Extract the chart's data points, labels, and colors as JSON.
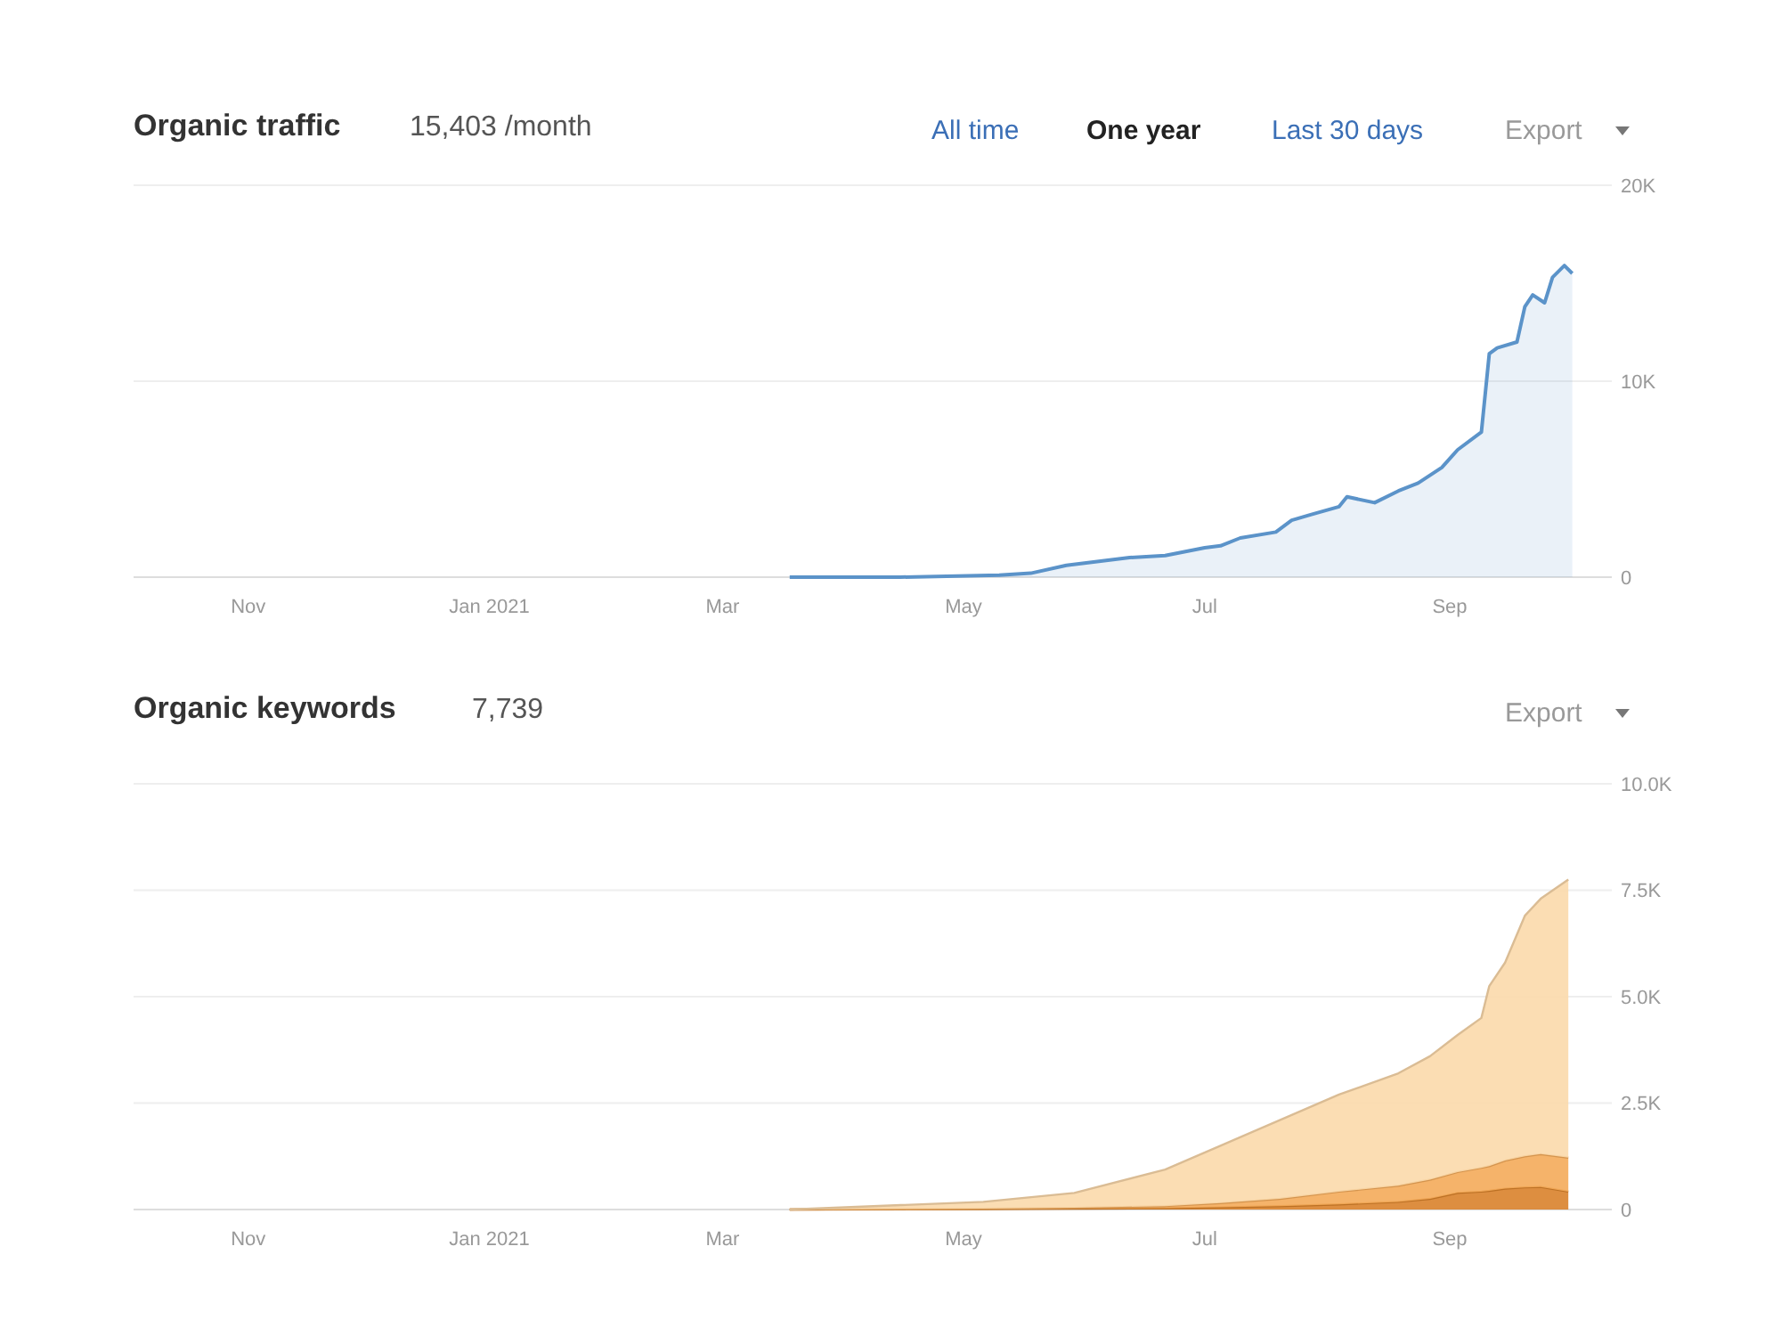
{
  "chart_data": [
    {
      "type": "area",
      "title": "Organic traffic",
      "subtitle": "15,403 /month",
      "annotations": [
        "All time",
        "One year",
        "Last 30 days",
        "Export"
      ],
      "x": [
        "2021-03-18",
        "2021-04-15",
        "2021-05-10",
        "2021-05-18",
        "2021-05-27",
        "2021-06-12",
        "2021-06-21",
        "2021-07-01",
        "2021-07-05",
        "2021-07-10",
        "2021-07-19",
        "2021-07-23",
        "2021-07-28",
        "2021-08-04",
        "2021-08-06",
        "2021-08-13",
        "2021-08-19",
        "2021-08-24",
        "2021-08-30",
        "2021-09-03",
        "2021-09-09",
        "2021-09-11",
        "2021-09-13",
        "2021-09-18",
        "2021-09-20",
        "2021-09-22",
        "2021-09-25",
        "2021-09-27",
        "2021-09-30",
        "2021-10-02"
      ],
      "series": [
        {
          "color": "#5b93c9",
          "values": [
            0,
            0,
            100,
            200,
            600,
            1000,
            1100,
            1500,
            1600,
            2000,
            2300,
            2900,
            3200,
            3600,
            4100,
            3800,
            4400,
            4800,
            5600,
            6500,
            7400,
            11400,
            11700,
            12000,
            13800,
            14400,
            14000,
            15300,
            15900,
            15500
          ]
        }
      ],
      "xlim": [
        "2020-10-03",
        "2021-10-12"
      ],
      "xticks": [
        {
          "value": "2020-11-01",
          "label": "Nov"
        },
        {
          "value": "2021-01-01",
          "label": "Jan 2021"
        },
        {
          "value": "2021-03-01",
          "label": "Mar"
        },
        {
          "value": "2021-05-01",
          "label": "May"
        },
        {
          "value": "2021-07-01",
          "label": "Jul"
        },
        {
          "value": "2021-09-01",
          "label": "Sep"
        }
      ],
      "ylim": [
        0,
        20000
      ],
      "yticks": [
        0,
        {
          "value": 10000,
          "label": "10K"
        },
        {
          "value": 20000,
          "label": "20K"
        }
      ],
      "grid": "y"
    },
    {
      "type": "area",
      "title": "Organic keywords",
      "subtitle": "7,739",
      "annotations": [
        "Export"
      ],
      "stacked": true,
      "x": [
        "2021-03-18",
        "2021-05-06",
        "2021-05-29",
        "2021-06-21",
        "2021-07-05",
        "2021-07-20",
        "2021-08-04",
        "2021-08-19",
        "2021-08-27",
        "2021-09-03",
        "2021-09-09",
        "2021-09-11",
        "2021-09-15",
        "2021-09-20",
        "2021-09-24",
        "2021-10-01"
      ],
      "series": [
        {
          "color": "#d9822b",
          "values": [
            0,
            10,
            20,
            30,
            50,
            80,
            120,
            180,
            250,
            390,
            420,
            440,
            490,
            520,
            530,
            420
          ]
        },
        {
          "color": "#f4ab5a",
          "values": [
            0,
            10,
            20,
            50,
            100,
            170,
            300,
            380,
            450,
            490,
            560,
            580,
            660,
            730,
            770,
            800
          ]
        },
        {
          "color": "#fbd9ab",
          "values": [
            0,
            160,
            350,
            860,
            1350,
            1850,
            2280,
            2640,
            2900,
            3220,
            3520,
            4230,
            4650,
            5650,
            6000,
            6530
          ]
        }
      ],
      "xlim": [
        "2020-10-03",
        "2021-10-12"
      ],
      "xticks": [
        {
          "value": "2020-11-01",
          "label": "Nov"
        },
        {
          "value": "2021-01-01",
          "label": "Jan 2021"
        },
        {
          "value": "2021-03-01",
          "label": "Mar"
        },
        {
          "value": "2021-05-01",
          "label": "May"
        },
        {
          "value": "2021-07-01",
          "label": "Jul"
        },
        {
          "value": "2021-09-01",
          "label": "Sep"
        }
      ],
      "ylim": [
        0,
        10000
      ],
      "yticks": [
        0,
        {
          "value": 2500,
          "label": "2.5K"
        },
        {
          "value": 5000,
          "label": "5.0K"
        },
        {
          "value": 7500,
          "label": "7.5K"
        },
        {
          "value": 10000,
          "label": "10.0K"
        }
      ],
      "grid": "y"
    }
  ]
}
